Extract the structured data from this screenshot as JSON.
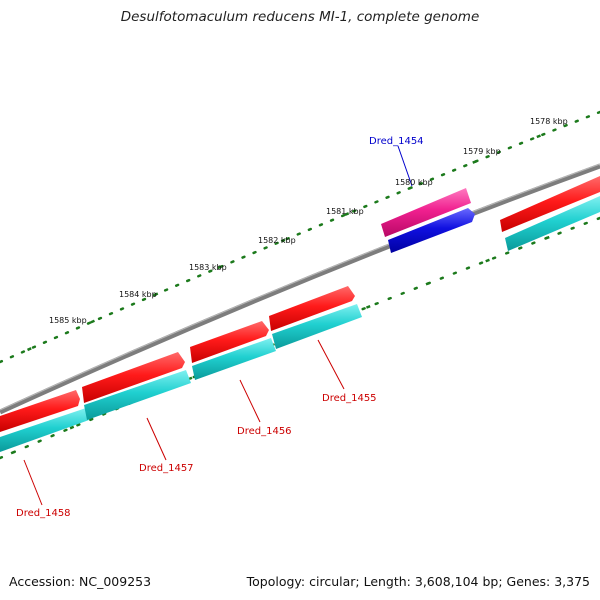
{
  "title": "Desulfotomaculum reducens MI-1, complete genome",
  "footer": {
    "accession": "Accession: NC_009253",
    "topology": "Topology: circular; Length: 3,608,104 bp; Genes: 3,375"
  },
  "colors": {
    "backbone": "#808080",
    "forward_gene": "#ff1a1a",
    "reverse_gene": "#20d0d0",
    "highlight_gene": "#f0208f",
    "highlight_reverse": "#1010e0",
    "ticks": "#1c7a1c",
    "gene_label": "#cc0000",
    "highlight_label": "#0000cc"
  },
  "scale": {
    "unit": "kbp",
    "labels": [
      "1578 kbp",
      "1579 kbp",
      "1580 kbp",
      "1581 kbp",
      "1582 kbp",
      "1583 kbp",
      "1584 kbp",
      "1585 kbp"
    ]
  },
  "gene_labels": [
    {
      "name": "Dred_1454",
      "highlight": true
    },
    {
      "name": "Dred_1455",
      "highlight": false
    },
    {
      "name": "Dred_1456",
      "highlight": false
    },
    {
      "name": "Dred_1457",
      "highlight": false
    },
    {
      "name": "Dred_1458",
      "highlight": false
    }
  ]
}
